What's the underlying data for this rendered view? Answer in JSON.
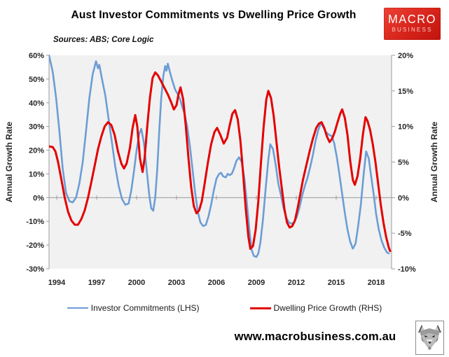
{
  "header": {
    "title": "Aust Investor Commitments vs Dwelling Price Growth",
    "source_note": "Sources: ABS; Core Logic",
    "logo_line1": "MACRO",
    "logo_line2": "BUSINESS",
    "logo_color": "#d6241b"
  },
  "footer": {
    "website": "www.macrobusiness.com.au",
    "wolf_icon": "wolf-head-logo"
  },
  "colors": {
    "plot_background": "#f1f1f1",
    "axis_line": "#9b9b9b",
    "tick_label": "#262626",
    "investor_line": "#6c9dd5",
    "dwelling_line": "#e40000"
  },
  "chart_data": {
    "type": "line",
    "title": "Aust Investor Commitments vs Dwelling Price Growth",
    "grid": "zero-line-only",
    "legend_position": "bottom",
    "axes": {
      "x": {
        "min": 1993.42,
        "max": 2019.16,
        "tick_values": [
          1994,
          1997,
          2000,
          2003,
          2006,
          2009,
          2012,
          2015,
          2018
        ],
        "tick_labels": [
          "1994",
          "1997",
          "2000",
          "2003",
          "2006",
          "2009",
          "2012",
          "2015",
          "2018"
        ]
      },
      "left": {
        "title": "Annual Growth Rate",
        "min": -30,
        "max": 60,
        "tick_values": [
          60,
          50,
          40,
          30,
          20,
          10,
          0,
          -10,
          -20,
          -30
        ],
        "tick_labels": [
          "60%",
          "50%",
          "40%",
          "30%",
          "20%",
          "10%",
          "0%",
          "-10%",
          "-20%",
          "-30%"
        ]
      },
      "right": {
        "title": "Annual Growth Rate",
        "min": -10,
        "max": 20,
        "tick_values": [
          20,
          15,
          10,
          5,
          0,
          -5,
          -10
        ],
        "tick_labels": [
          "20%",
          "15%",
          "10%",
          "5%",
          "0%",
          "-5%",
          "-10%"
        ]
      }
    },
    "series": [
      {
        "name": "Investor Commitments (LHS)",
        "axis": "left",
        "color": "#6c9dd5",
        "width": 2.6,
        "points": [
          [
            1993.42,
            60
          ],
          [
            1993.7,
            53
          ],
          [
            1993.95,
            42
          ],
          [
            1994.2,
            28
          ],
          [
            1994.45,
            12
          ],
          [
            1994.7,
            2
          ],
          [
            1994.95,
            -1.5
          ],
          [
            1995.2,
            -2
          ],
          [
            1995.45,
            0
          ],
          [
            1995.7,
            6
          ],
          [
            1995.95,
            15
          ],
          [
            1996.2,
            28
          ],
          [
            1996.45,
            42
          ],
          [
            1996.7,
            52
          ],
          [
            1996.95,
            57.5
          ],
          [
            1997.1,
            54.5
          ],
          [
            1997.2,
            56
          ],
          [
            1997.4,
            50
          ],
          [
            1997.65,
            43
          ],
          [
            1997.9,
            33
          ],
          [
            1998.15,
            23
          ],
          [
            1998.4,
            13
          ],
          [
            1998.65,
            5
          ],
          [
            1998.9,
            -0.5
          ],
          [
            1999.15,
            -3
          ],
          [
            1999.4,
            -2.5
          ],
          [
            1999.6,
            3
          ],
          [
            1999.8,
            11
          ],
          [
            2000.0,
            20
          ],
          [
            2000.2,
            27
          ],
          [
            2000.35,
            29
          ],
          [
            2000.55,
            23
          ],
          [
            2000.75,
            12
          ],
          [
            2000.95,
            1
          ],
          [
            2001.1,
            -4.5
          ],
          [
            2001.25,
            -5.5
          ],
          [
            2001.4,
            0
          ],
          [
            2001.55,
            12
          ],
          [
            2001.7,
            28
          ],
          [
            2001.85,
            42
          ],
          [
            2002.0,
            51
          ],
          [
            2002.15,
            55.5
          ],
          [
            2002.25,
            53.5
          ],
          [
            2002.35,
            56.5
          ],
          [
            2002.5,
            53
          ],
          [
            2002.7,
            49
          ],
          [
            2002.9,
            45.5
          ],
          [
            2003.1,
            43.5
          ],
          [
            2003.3,
            41
          ],
          [
            2003.45,
            38
          ],
          [
            2003.6,
            35.5
          ],
          [
            2003.8,
            30
          ],
          [
            2004.0,
            22
          ],
          [
            2004.2,
            12
          ],
          [
            2004.4,
            2
          ],
          [
            2004.6,
            -6
          ],
          [
            2004.8,
            -10.5
          ],
          [
            2005.0,
            -12
          ],
          [
            2005.2,
            -11.5
          ],
          [
            2005.4,
            -8
          ],
          [
            2005.6,
            -3
          ],
          [
            2005.8,
            3
          ],
          [
            2006.0,
            8
          ],
          [
            2006.2,
            10
          ],
          [
            2006.35,
            10.5
          ],
          [
            2006.5,
            9
          ],
          [
            2006.7,
            8.5
          ],
          [
            2006.85,
            10
          ],
          [
            2007.0,
            9.5
          ],
          [
            2007.15,
            10
          ],
          [
            2007.3,
            12
          ],
          [
            2007.5,
            15.5
          ],
          [
            2007.7,
            17
          ],
          [
            2007.9,
            15
          ],
          [
            2008.1,
            8
          ],
          [
            2008.3,
            -3
          ],
          [
            2008.5,
            -15
          ],
          [
            2008.65,
            -22
          ],
          [
            2008.8,
            -24.5
          ],
          [
            2009.0,
            -25
          ],
          [
            2009.15,
            -23.5
          ],
          [
            2009.3,
            -19
          ],
          [
            2009.5,
            -9
          ],
          [
            2009.7,
            4
          ],
          [
            2009.9,
            16
          ],
          [
            2010.05,
            22.5
          ],
          [
            2010.25,
            20.5
          ],
          [
            2010.45,
            14
          ],
          [
            2010.65,
            6
          ],
          [
            2010.85,
            1
          ],
          [
            2011.05,
            -4.5
          ],
          [
            2011.25,
            -8.5
          ],
          [
            2011.45,
            -10.5
          ],
          [
            2011.65,
            -11
          ],
          [
            2011.85,
            -10.5
          ],
          [
            2012.05,
            -8
          ],
          [
            2012.25,
            -4
          ],
          [
            2012.45,
            1
          ],
          [
            2012.65,
            5
          ],
          [
            2012.85,
            8.5
          ],
          [
            2013.05,
            13
          ],
          [
            2013.25,
            18
          ],
          [
            2013.45,
            24
          ],
          [
            2013.65,
            28.5
          ],
          [
            2013.85,
            31.5
          ],
          [
            2014.05,
            29.5
          ],
          [
            2014.25,
            27.5
          ],
          [
            2014.45,
            26.5
          ],
          [
            2014.65,
            26
          ],
          [
            2014.85,
            23
          ],
          [
            2015.05,
            17
          ],
          [
            2015.25,
            9.5
          ],
          [
            2015.45,
            1.5
          ],
          [
            2015.65,
            -6.5
          ],
          [
            2015.85,
            -13.5
          ],
          [
            2016.05,
            -18.5
          ],
          [
            2016.25,
            -21.5
          ],
          [
            2016.45,
            -19.5
          ],
          [
            2016.65,
            -12
          ],
          [
            2016.85,
            -3
          ],
          [
            2017.05,
            9
          ],
          [
            2017.25,
            19.5
          ],
          [
            2017.45,
            16.5
          ],
          [
            2017.6,
            10
          ],
          [
            2017.8,
            2
          ],
          [
            2018.0,
            -7
          ],
          [
            2018.2,
            -13.5
          ],
          [
            2018.4,
            -18
          ],
          [
            2018.6,
            -21
          ],
          [
            2018.8,
            -23
          ],
          [
            2018.95,
            -23.5
          ]
        ]
      },
      {
        "name": "Dwelling Price Growth (RHS)",
        "axis": "right",
        "color": "#e40000",
        "width": 3,
        "points": [
          [
            1993.42,
            7.2
          ],
          [
            1993.7,
            7.1
          ],
          [
            1993.9,
            6.5
          ],
          [
            1994.1,
            5.0
          ],
          [
            1994.35,
            2.5
          ],
          [
            1994.6,
            0
          ],
          [
            1994.85,
            -2.0
          ],
          [
            1995.1,
            -3.2
          ],
          [
            1995.35,
            -3.8
          ],
          [
            1995.6,
            -3.8
          ],
          [
            1995.85,
            -3.0
          ],
          [
            1996.1,
            -1.8
          ],
          [
            1996.35,
            0
          ],
          [
            1996.6,
            2.2
          ],
          [
            1996.85,
            4.5
          ],
          [
            1997.1,
            6.8
          ],
          [
            1997.35,
            8.6
          ],
          [
            1997.6,
            10.0
          ],
          [
            1997.85,
            10.6
          ],
          [
            1998.1,
            10.2
          ],
          [
            1998.35,
            8.8
          ],
          [
            1998.6,
            6.5
          ],
          [
            1998.85,
            4.8
          ],
          [
            1999.05,
            4.1
          ],
          [
            1999.25,
            4.8
          ],
          [
            1999.5,
            7.0
          ],
          [
            1999.7,
            9.8
          ],
          [
            1999.9,
            11.6
          ],
          [
            2000.05,
            10.0
          ],
          [
            2000.25,
            5.5
          ],
          [
            2000.45,
            3.6
          ],
          [
            2000.6,
            5.5
          ],
          [
            2000.8,
            10.0
          ],
          [
            2001.0,
            14.0
          ],
          [
            2001.2,
            16.8
          ],
          [
            2001.4,
            17.6
          ],
          [
            2001.6,
            17.2
          ],
          [
            2001.85,
            16.3
          ],
          [
            2002.1,
            15.4
          ],
          [
            2002.35,
            14.5
          ],
          [
            2002.6,
            13.4
          ],
          [
            2002.8,
            12.4
          ],
          [
            2003.0,
            13.0
          ],
          [
            2003.15,
            14.5
          ],
          [
            2003.3,
            15.5
          ],
          [
            2003.5,
            13.8
          ],
          [
            2003.7,
            10.0
          ],
          [
            2003.9,
            5.5
          ],
          [
            2004.1,
            1.5
          ],
          [
            2004.3,
            -1.2
          ],
          [
            2004.5,
            -2.2
          ],
          [
            2004.7,
            -1.8
          ],
          [
            2004.9,
            -0.5
          ],
          [
            2005.1,
            1.8
          ],
          [
            2005.35,
            4.8
          ],
          [
            2005.6,
            7.5
          ],
          [
            2005.85,
            9.2
          ],
          [
            2006.05,
            9.8
          ],
          [
            2006.3,
            8.8
          ],
          [
            2006.55,
            7.6
          ],
          [
            2006.8,
            8.4
          ],
          [
            2007.0,
            10.2
          ],
          [
            2007.2,
            11.8
          ],
          [
            2007.4,
            12.3
          ],
          [
            2007.6,
            11.0
          ],
          [
            2007.8,
            8.0
          ],
          [
            2008.0,
            3.5
          ],
          [
            2008.2,
            -1.5
          ],
          [
            2008.4,
            -5.5
          ],
          [
            2008.55,
            -7.2
          ],
          [
            2008.75,
            -6.8
          ],
          [
            2008.95,
            -4.5
          ],
          [
            2009.15,
            -0.5
          ],
          [
            2009.35,
            5.0
          ],
          [
            2009.55,
            10.0
          ],
          [
            2009.75,
            13.8
          ],
          [
            2009.9,
            15.0
          ],
          [
            2010.1,
            14.0
          ],
          [
            2010.3,
            11.5
          ],
          [
            2010.5,
            8.0
          ],
          [
            2010.7,
            4.5
          ],
          [
            2010.9,
            1.5
          ],
          [
            2011.1,
            -1.5
          ],
          [
            2011.3,
            -3.5
          ],
          [
            2011.5,
            -4.2
          ],
          [
            2011.7,
            -4.0
          ],
          [
            2011.9,
            -3.2
          ],
          [
            2012.1,
            -1.5
          ],
          [
            2012.3,
            0.5
          ],
          [
            2012.5,
            2.5
          ],
          [
            2012.75,
            4.5
          ],
          [
            2013.0,
            6.5
          ],
          [
            2013.25,
            8.3
          ],
          [
            2013.5,
            9.8
          ],
          [
            2013.7,
            10.4
          ],
          [
            2013.9,
            10.6
          ],
          [
            2014.1,
            9.8
          ],
          [
            2014.3,
            8.6
          ],
          [
            2014.5,
            7.8
          ],
          [
            2014.7,
            8.3
          ],
          [
            2014.9,
            9.3
          ],
          [
            2015.1,
            10.6
          ],
          [
            2015.3,
            11.8
          ],
          [
            2015.45,
            12.4
          ],
          [
            2015.65,
            11.2
          ],
          [
            2015.85,
            8.8
          ],
          [
            2016.05,
            5.2
          ],
          [
            2016.25,
            2.5
          ],
          [
            2016.4,
            1.8
          ],
          [
            2016.6,
            3.0
          ],
          [
            2016.8,
            5.5
          ],
          [
            2017.0,
            8.8
          ],
          [
            2017.2,
            11.3
          ],
          [
            2017.35,
            10.8
          ],
          [
            2017.55,
            9.5
          ],
          [
            2017.75,
            7.5
          ],
          [
            2017.95,
            5.0
          ],
          [
            2018.15,
            2.0
          ],
          [
            2018.35,
            -1.0
          ],
          [
            2018.55,
            -3.5
          ],
          [
            2018.75,
            -5.5
          ],
          [
            2018.95,
            -7.0
          ],
          [
            2019.05,
            -7.5
          ]
        ]
      }
    ]
  }
}
